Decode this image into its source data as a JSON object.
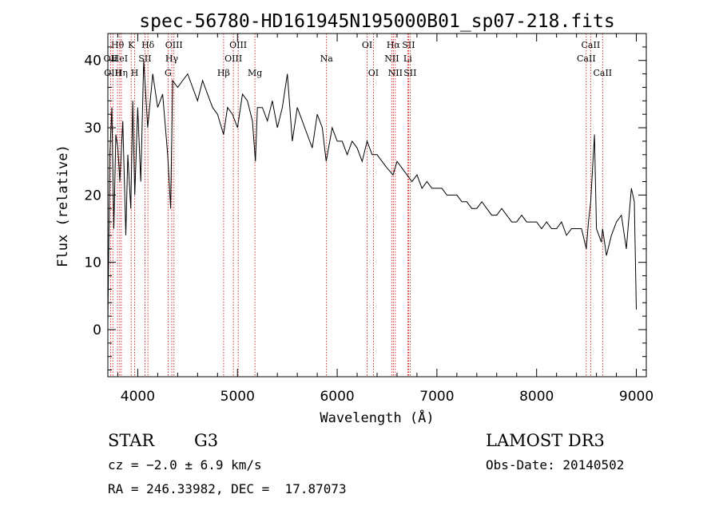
{
  "chart_data": {
    "type": "line",
    "title": "spec-56780-HD161945N195000B01_sp07-218.fits",
    "xlabel": "Wavelength (Å)",
    "ylabel": "Flux (relative)",
    "xlim": [
      3700,
      9100
    ],
    "ylim": [
      -7,
      44
    ],
    "xticks": [
      4000,
      5000,
      6000,
      7000,
      8000,
      9000
    ],
    "yticks": [
      0,
      10,
      20,
      30,
      40
    ],
    "grid": false,
    "line_color": "#000000",
    "marker_color": "#cc0000",
    "series": [
      {
        "x": [
          3700,
          3720,
          3740,
          3760,
          3780,
          3800,
          3820,
          3850,
          3880,
          3900,
          3930,
          3950,
          3970,
          4000,
          4030,
          4060,
          4100,
          4150,
          4200,
          4250,
          4300,
          4330,
          4350,
          4400,
          4450,
          4500,
          4550,
          4600,
          4650,
          4700,
          4750,
          4800,
          4860,
          4900,
          4950,
          5000,
          5050,
          5100,
          5150,
          5180,
          5200,
          5250,
          5300,
          5350,
          5400,
          5450,
          5500,
          5550,
          5600,
          5650,
          5700,
          5750,
          5800,
          5850,
          5890,
          5950,
          6000,
          6050,
          6100,
          6150,
          6200,
          6250,
          6300,
          6350,
          6400,
          6450,
          6500,
          6560,
          6600,
          6650,
          6700,
          6750,
          6800,
          6850,
          6900,
          6950,
          7000,
          7050,
          7100,
          7150,
          7200,
          7250,
          7300,
          7350,
          7400,
          7450,
          7500,
          7550,
          7600,
          7650,
          7700,
          7750,
          7800,
          7850,
          7900,
          7950,
          8000,
          8050,
          8100,
          8150,
          8200,
          8250,
          8300,
          8350,
          8400,
          8450,
          8498,
          8520,
          8542,
          8580,
          8600,
          8650,
          8662,
          8700,
          8750,
          8800,
          8850,
          8900,
          8950,
          8980,
          9000
        ],
        "y": [
          1,
          26,
          33,
          15,
          29,
          27,
          22,
          31,
          14,
          26,
          18,
          34,
          20,
          33,
          22,
          40,
          30,
          38,
          33,
          35,
          26,
          18,
          37,
          36,
          37,
          38,
          36,
          34,
          37,
          35,
          33,
          32,
          29,
          33,
          32,
          30,
          35,
          34,
          31,
          25,
          33,
          33,
          31,
          34,
          30,
          33,
          38,
          28,
          33,
          31,
          29,
          27,
          32,
          30,
          25,
          30,
          28,
          28,
          26,
          28,
          27,
          25,
          28,
          26,
          26,
          25,
          24,
          23,
          25,
          24,
          23,
          22,
          23,
          21,
          22,
          21,
          21,
          21,
          20,
          20,
          20,
          19,
          19,
          18,
          18,
          19,
          18,
          17,
          17,
          18,
          17,
          16,
          16,
          17,
          16,
          16,
          16,
          15,
          16,
          15,
          15,
          16,
          14,
          15,
          15,
          15,
          12,
          16,
          19,
          29,
          15,
          13,
          15,
          11,
          14,
          16,
          17,
          12,
          21,
          19,
          3
        ]
      }
    ],
    "line_markers": [
      {
        "label": "Hθ",
        "x": 3797,
        "row": 0
      },
      {
        "label": "OII",
        "x": 3727,
        "row": 1
      },
      {
        "label": "OIII",
        "x": 3750,
        "row": 2
      },
      {
        "label": "HeI",
        "x": 3819,
        "row": 1
      },
      {
        "label": "Hη",
        "x": 3835,
        "row": 2
      },
      {
        "label": "K",
        "x": 3934,
        "row": 0
      },
      {
        "label": "H",
        "x": 3969,
        "row": 2
      },
      {
        "label": "SII",
        "x": 4072,
        "row": 1
      },
      {
        "label": "Hδ",
        "x": 4102,
        "row": 0
      },
      {
        "label": "OIII",
        "x": 4363,
        "row": 0
      },
      {
        "label": "Hγ",
        "x": 4341,
        "row": 1
      },
      {
        "label": "G",
        "x": 4304,
        "row": 2
      },
      {
        "label": "Hβ",
        "x": 4861,
        "row": 2
      },
      {
        "label": "OIII",
        "x": 5007,
        "row": 0
      },
      {
        "label": "OIII",
        "x": 4959,
        "row": 1
      },
      {
        "label": "Mg",
        "x": 5175,
        "row": 2
      },
      {
        "label": "Na",
        "x": 5893,
        "row": 1
      },
      {
        "label": "OI",
        "x": 6300,
        "row": 0
      },
      {
        "label": "OI",
        "x": 6363,
        "row": 2
      },
      {
        "label": "Hα",
        "x": 6563,
        "row": 0
      },
      {
        "label": "NII",
        "x": 6548,
        "row": 1
      },
      {
        "label": "NII",
        "x": 6583,
        "row": 2
      },
      {
        "label": "SII",
        "x": 6716,
        "row": 0
      },
      {
        "label": "Li",
        "x": 6707,
        "row": 1
      },
      {
        "label": "SII",
        "x": 6731,
        "row": 2
      },
      {
        "label": "CaII",
        "x": 8542,
        "row": 0
      },
      {
        "label": "CaII",
        "x": 8498,
        "row": 1
      },
      {
        "label": "CaII",
        "x": 8662,
        "row": 2
      }
    ]
  },
  "info": {
    "object_class": "STAR",
    "subclass": "G3",
    "redshift": "cz = −2.0 ± 6.9 km/s",
    "coords": "RA = 246.33982, DEC =  17.87073",
    "survey": "LAMOST DR3",
    "obs_date": "Obs-Date: 20140502"
  }
}
